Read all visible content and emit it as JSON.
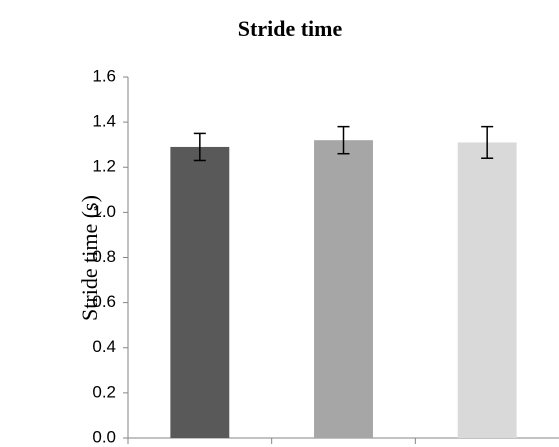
{
  "chart_data": {
    "type": "bar",
    "title": "Stride time",
    "y_label": "Stride time (s)",
    "categories": [
      null,
      null,
      null
    ],
    "values": [
      1.29,
      1.32,
      1.31
    ],
    "errors": [
      0.06,
      0.06,
      0.07
    ],
    "colors": [
      "#595959",
      "#a6a6a6",
      "#d9d9d9"
    ],
    "ylim": [
      0,
      1.6
    ],
    "yticks": [
      {
        "value": 0,
        "label": "0.0"
      },
      0.2,
      0.4,
      0.6,
      0.8,
      {
        "value": 1,
        "label": "1.0"
      },
      1.2,
      1.4,
      1.6
    ],
    "grid": false
  }
}
